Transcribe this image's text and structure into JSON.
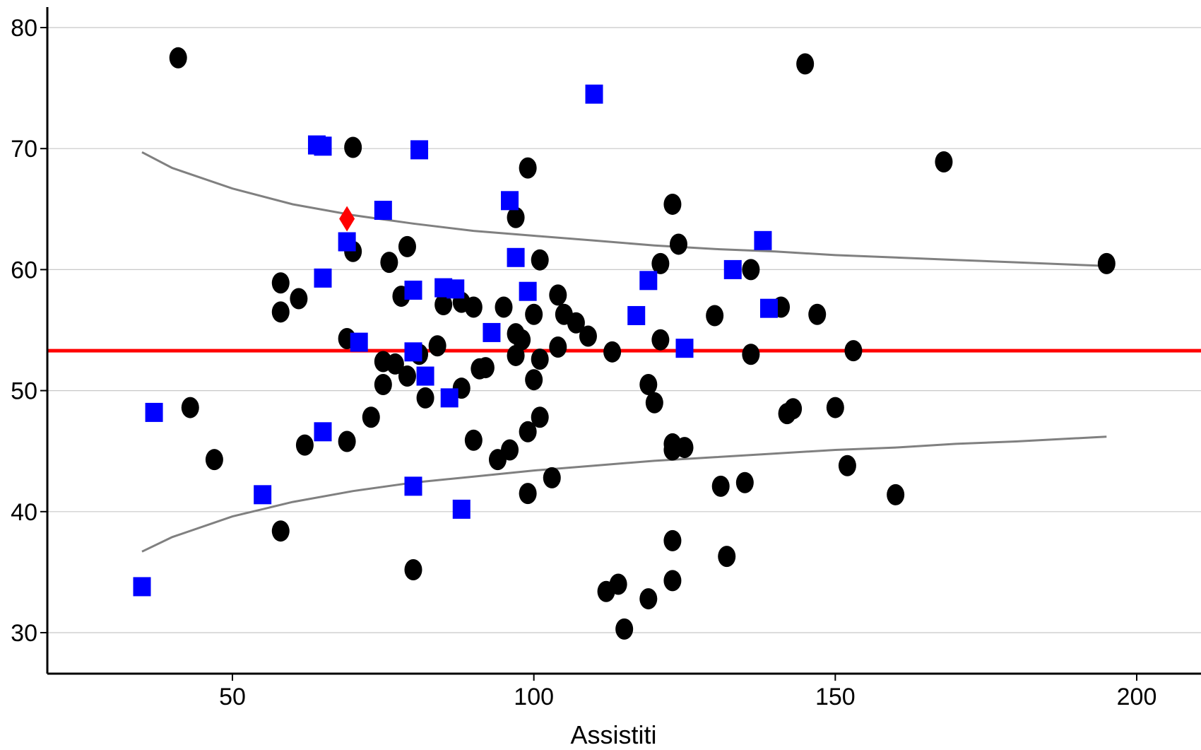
{
  "chart_data": {
    "type": "scatter",
    "title": "",
    "xlabel": "Assistiti",
    "ylabel": "",
    "xlim": [
      20,
      222
    ],
    "ylim": [
      25.5,
      82.5
    ],
    "xticks": [
      50,
      100,
      150,
      200
    ],
    "yticks": [
      30,
      40,
      50,
      60,
      70,
      80
    ],
    "grid": "horizontal",
    "colors": {
      "circles": "#000000",
      "squares": "#0000ff",
      "diamond": "#ff0000",
      "mean_line": "#ff0000",
      "limit_curves": "#808080",
      "grid": "#c8c8c8"
    },
    "mean_line": 53.3,
    "series": [
      {
        "marker": "circle",
        "points": [
          [
            41,
            77.5
          ],
          [
            43,
            48.6
          ],
          [
            47,
            44.3
          ],
          [
            58,
            58.9
          ],
          [
            58,
            56.5
          ],
          [
            58,
            38.4
          ],
          [
            61,
            57.6
          ],
          [
            62,
            45.5
          ],
          [
            69,
            54.3
          ],
          [
            69,
            45.8
          ],
          [
            70,
            70.1
          ],
          [
            70,
            61.5
          ],
          [
            73,
            47.8
          ],
          [
            75,
            52.4
          ],
          [
            75,
            50.5
          ],
          [
            76,
            60.6
          ],
          [
            77,
            52.2
          ],
          [
            78,
            57.8
          ],
          [
            79,
            51.2
          ],
          [
            79,
            61.9
          ],
          [
            80,
            35.2
          ],
          [
            81,
            53.0
          ],
          [
            82,
            49.4
          ],
          [
            84,
            53.7
          ],
          [
            85,
            57.1
          ],
          [
            88,
            57.3
          ],
          [
            88,
            50.2
          ],
          [
            90,
            56.9
          ],
          [
            90,
            45.9
          ],
          [
            91,
            51.8
          ],
          [
            92,
            51.9
          ],
          [
            94,
            44.3
          ],
          [
            95,
            56.9
          ],
          [
            96,
            45.1
          ],
          [
            97,
            64.3
          ],
          [
            97,
            54.7
          ],
          [
            97,
            52.9
          ],
          [
            98,
            54.2
          ],
          [
            99,
            68.4
          ],
          [
            99,
            46.6
          ],
          [
            99,
            41.5
          ],
          [
            100,
            56.3
          ],
          [
            100,
            50.9
          ],
          [
            101,
            60.8
          ],
          [
            101,
            52.6
          ],
          [
            101,
            47.8
          ],
          [
            103,
            42.8
          ],
          [
            104,
            57.9
          ],
          [
            104,
            53.6
          ],
          [
            105,
            56.3
          ],
          [
            107,
            55.6
          ],
          [
            109,
            54.5
          ],
          [
            112,
            33.4
          ],
          [
            113,
            53.2
          ],
          [
            114,
            34.0
          ],
          [
            115,
            30.3
          ],
          [
            119,
            50.5
          ],
          [
            119,
            32.8
          ],
          [
            120,
            49.0
          ],
          [
            121,
            60.5
          ],
          [
            121,
            54.2
          ],
          [
            123,
            65.4
          ],
          [
            123,
            45.6
          ],
          [
            123,
            45.1
          ],
          [
            123,
            37.6
          ],
          [
            123,
            34.3
          ],
          [
            124,
            62.1
          ],
          [
            125,
            45.3
          ],
          [
            130,
            56.2
          ],
          [
            131,
            42.1
          ],
          [
            132,
            36.3
          ],
          [
            135,
            42.4
          ],
          [
            136,
            60.0
          ],
          [
            136,
            53.0
          ],
          [
            141,
            56.9
          ],
          [
            142,
            48.1
          ],
          [
            143,
            48.5
          ],
          [
            145,
            77.0
          ],
          [
            147,
            56.3
          ],
          [
            150,
            48.6
          ],
          [
            152,
            43.8
          ],
          [
            153,
            53.3
          ],
          [
            160,
            41.4
          ],
          [
            168,
            68.9
          ],
          [
            195,
            60.5
          ]
        ]
      },
      {
        "marker": "square",
        "points": [
          [
            35,
            33.8
          ],
          [
            37,
            48.2
          ],
          [
            55,
            41.4
          ],
          [
            64,
            70.3
          ],
          [
            65,
            70.2
          ],
          [
            65,
            59.3
          ],
          [
            65,
            46.6
          ],
          [
            69,
            62.3
          ],
          [
            71,
            54.0
          ],
          [
            75,
            64.9
          ],
          [
            80,
            58.3
          ],
          [
            80,
            53.2
          ],
          [
            80,
            42.1
          ],
          [
            81,
            69.9
          ],
          [
            82,
            51.2
          ],
          [
            85,
            58.5
          ],
          [
            86,
            49.4
          ],
          [
            87,
            58.4
          ],
          [
            88,
            40.2
          ],
          [
            93,
            54.8
          ],
          [
            96,
            65.7
          ],
          [
            97,
            61.0
          ],
          [
            99,
            58.2
          ],
          [
            110,
            74.5
          ],
          [
            117,
            56.2
          ],
          [
            119,
            59.1
          ],
          [
            125,
            53.5
          ],
          [
            133,
            60.0
          ],
          [
            138,
            62.4
          ],
          [
            139,
            56.8
          ]
        ]
      },
      {
        "marker": "diamond",
        "points": [
          [
            69,
            64.2
          ]
        ]
      }
    ],
    "limit_curves": {
      "upper": [
        [
          35,
          69.7
        ],
        [
          40,
          68.4
        ],
        [
          50,
          66.7
        ],
        [
          60,
          65.4
        ],
        [
          70,
          64.5
        ],
        [
          80,
          63.8
        ],
        [
          90,
          63.2
        ],
        [
          100,
          62.8
        ],
        [
          110,
          62.4
        ],
        [
          120,
          62.0
        ],
        [
          130,
          61.7
        ],
        [
          140,
          61.5
        ],
        [
          150,
          61.2
        ],
        [
          160,
          61.0
        ],
        [
          170,
          60.8
        ],
        [
          180,
          60.6
        ],
        [
          195,
          60.3
        ]
      ],
      "lower": [
        [
          35,
          36.7
        ],
        [
          40,
          37.9
        ],
        [
          50,
          39.6
        ],
        [
          60,
          40.8
        ],
        [
          70,
          41.7
        ],
        [
          80,
          42.4
        ],
        [
          90,
          42.9
        ],
        [
          100,
          43.4
        ],
        [
          110,
          43.8
        ],
        [
          120,
          44.2
        ],
        [
          130,
          44.5
        ],
        [
          140,
          44.8
        ],
        [
          150,
          45.1
        ],
        [
          160,
          45.3
        ],
        [
          170,
          45.6
        ],
        [
          180,
          45.8
        ],
        [
          195,
          46.2
        ]
      ]
    }
  }
}
